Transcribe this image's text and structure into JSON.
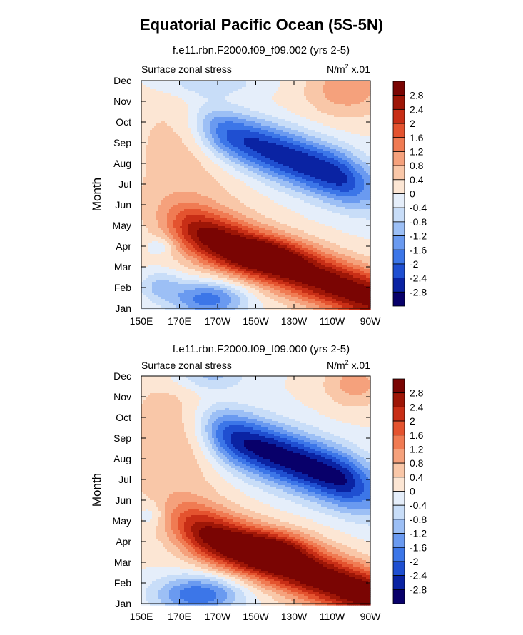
{
  "title": "Equatorial Pacific Ocean (5S-5N)",
  "panels": [
    {
      "subtitle": "f.e11.rbn.F2000.f09_f09.002 (yrs 2-5)",
      "left_label": "Surface zonal stress",
      "right_label_main": "N/m",
      "right_label_sup": "2",
      "right_label_suffix": " x.01",
      "ylabel": "Month"
    },
    {
      "subtitle": "f.e11.rbn.F2000.f09_f09.000 (yrs 2-5)",
      "left_label": "Surface zonal stress",
      "right_label_main": "N/m",
      "right_label_sup": "2",
      "right_label_suffix": " x.01",
      "ylabel": "Month"
    }
  ],
  "colors": {
    "levels": [
      "#08006a",
      "#0a23a3",
      "#1f4fd1",
      "#3c76e8",
      "#6a9af0",
      "#9cbff5",
      "#c8ddf8",
      "#e5eefa",
      "#fce6d4",
      "#f9c7a8",
      "#f5a17c",
      "#f07b53",
      "#e4532f",
      "#c82e16",
      "#9e1607",
      "#7a0503"
    ]
  },
  "chart_data": [
    {
      "type": "contour",
      "title": "f.e11.rbn.F2000.f09_f09.002 (yrs 2-5)",
      "xlabel": "",
      "ylabel": "Month",
      "x_ticks": [
        "150E",
        "170E",
        "170W",
        "150W",
        "130W",
        "110W",
        "90W"
      ],
      "x_values": [
        150,
        170,
        190,
        210,
        230,
        250,
        270
      ],
      "xlim": [
        150,
        270
      ],
      "y_ticks": [
        "Jan",
        "Feb",
        "Mar",
        "Apr",
        "May",
        "Jun",
        "Jul",
        "Aug",
        "Sep",
        "Oct",
        "Nov",
        "Dec"
      ],
      "y_values": [
        1,
        2,
        3,
        4,
        5,
        6,
        7,
        8,
        9,
        10,
        11,
        12
      ],
      "ylim": [
        1,
        12
      ],
      "units": "N/m^2 x.01",
      "variable": "Surface zonal stress",
      "contour_levels": [
        -2.8,
        -2.4,
        -2,
        -1.6,
        -1.2,
        -0.8,
        -0.4,
        0,
        0.4,
        0.8,
        1.2,
        1.6,
        2,
        2.4,
        2.8
      ],
      "features": [
        {
          "lon": 215,
          "month": 3.55,
          "value": 3.2,
          "sign": "positive max"
        },
        {
          "lon": 223,
          "month": 8.0,
          "value": -2.8,
          "sign": "negative min"
        },
        {
          "lon": 185,
          "month": 1.5,
          "value": -1.8,
          "sign": "negative min"
        },
        {
          "lon": 260,
          "month": 11.5,
          "value": 1.1,
          "sign": "positive"
        }
      ]
    },
    {
      "type": "contour",
      "title": "f.e11.rbn.F2000.f09_f09.000 (yrs 2-5)",
      "xlabel": "",
      "ylabel": "Month",
      "x_ticks": [
        "150E",
        "170E",
        "170W",
        "150W",
        "130W",
        "110W",
        "90W"
      ],
      "x_values": [
        150,
        170,
        190,
        210,
        230,
        250,
        270
      ],
      "xlim": [
        150,
        270
      ],
      "y_ticks": [
        "Jan",
        "Feb",
        "Mar",
        "Apr",
        "May",
        "Jun",
        "Jul",
        "Aug",
        "Sep",
        "Oct",
        "Nov",
        "Dec"
      ],
      "y_values": [
        1,
        2,
        3,
        4,
        5,
        6,
        7,
        8,
        9,
        10,
        11,
        12
      ],
      "ylim": [
        1,
        12
      ],
      "units": "N/m^2 x.01",
      "variable": "Surface zonal stress",
      "contour_levels": [
        -2.8,
        -2.4,
        -2,
        -1.6,
        -1.2,
        -0.8,
        -0.4,
        0,
        0.4,
        0.8,
        1.2,
        1.6,
        2,
        2.4,
        2.8
      ],
      "features": [
        {
          "lon": 218,
          "month": 3.7,
          "value": 3.3,
          "sign": "positive max"
        },
        {
          "lon": 225,
          "month": 7.5,
          "value": -3.0,
          "sign": "negative min"
        },
        {
          "lon": 180,
          "month": 1.5,
          "value": -1.8,
          "sign": "negative min"
        },
        {
          "lon": 262,
          "month": 11.5,
          "value": 1.0,
          "sign": "positive"
        }
      ]
    }
  ],
  "colorbar": {
    "labels": [
      "2.8",
      "2.4",
      "2",
      "1.6",
      "1.2",
      "0.8",
      "0.4",
      "0",
      "-0.4",
      "-0.8",
      "-1.2",
      "-1.6",
      "-2",
      "-2.4",
      "-2.8"
    ]
  }
}
